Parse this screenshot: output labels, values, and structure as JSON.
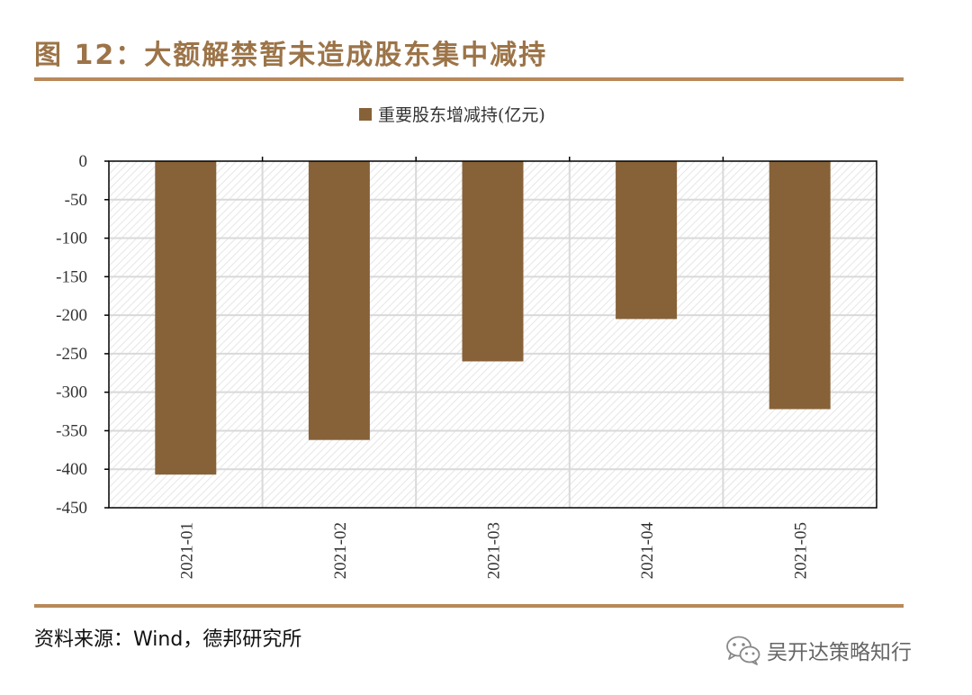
{
  "figure": {
    "title": "图 12：大额解禁暂未造成股东集中减持"
  },
  "source": "资料来源：Wind，德邦研究所",
  "watermark": {
    "text": "吴开达策略知行",
    "icon": "wechat-icon"
  },
  "colors": {
    "title": "#9c7448",
    "rule": "#b8895a",
    "bar": "#876238",
    "axis": "#000000",
    "grid": "#d9d9d9",
    "plot_hatch": "#e6e6e6"
  },
  "chart_data": {
    "type": "bar",
    "title": "",
    "xlabel": "",
    "ylabel": "",
    "categories": [
      "2021-01",
      "2021-02",
      "2021-03",
      "2021-04",
      "2021-05"
    ],
    "series": [
      {
        "name": "重要股东增减持(亿元)",
        "values": [
          -407,
          -362,
          -260,
          -205,
          -322
        ]
      }
    ],
    "ylim": [
      -450,
      0
    ],
    "yticks": [
      0,
      -50,
      -100,
      -150,
      -200,
      -250,
      -300,
      -350,
      -400,
      -450
    ],
    "ytick_labels": [
      "0",
      "-50",
      "-100",
      "-150",
      "-200",
      "-250",
      "-300",
      "-350",
      "-400",
      "-450"
    ],
    "grid": true,
    "legend": "top-center",
    "x_tick_rotation": "vertical"
  }
}
